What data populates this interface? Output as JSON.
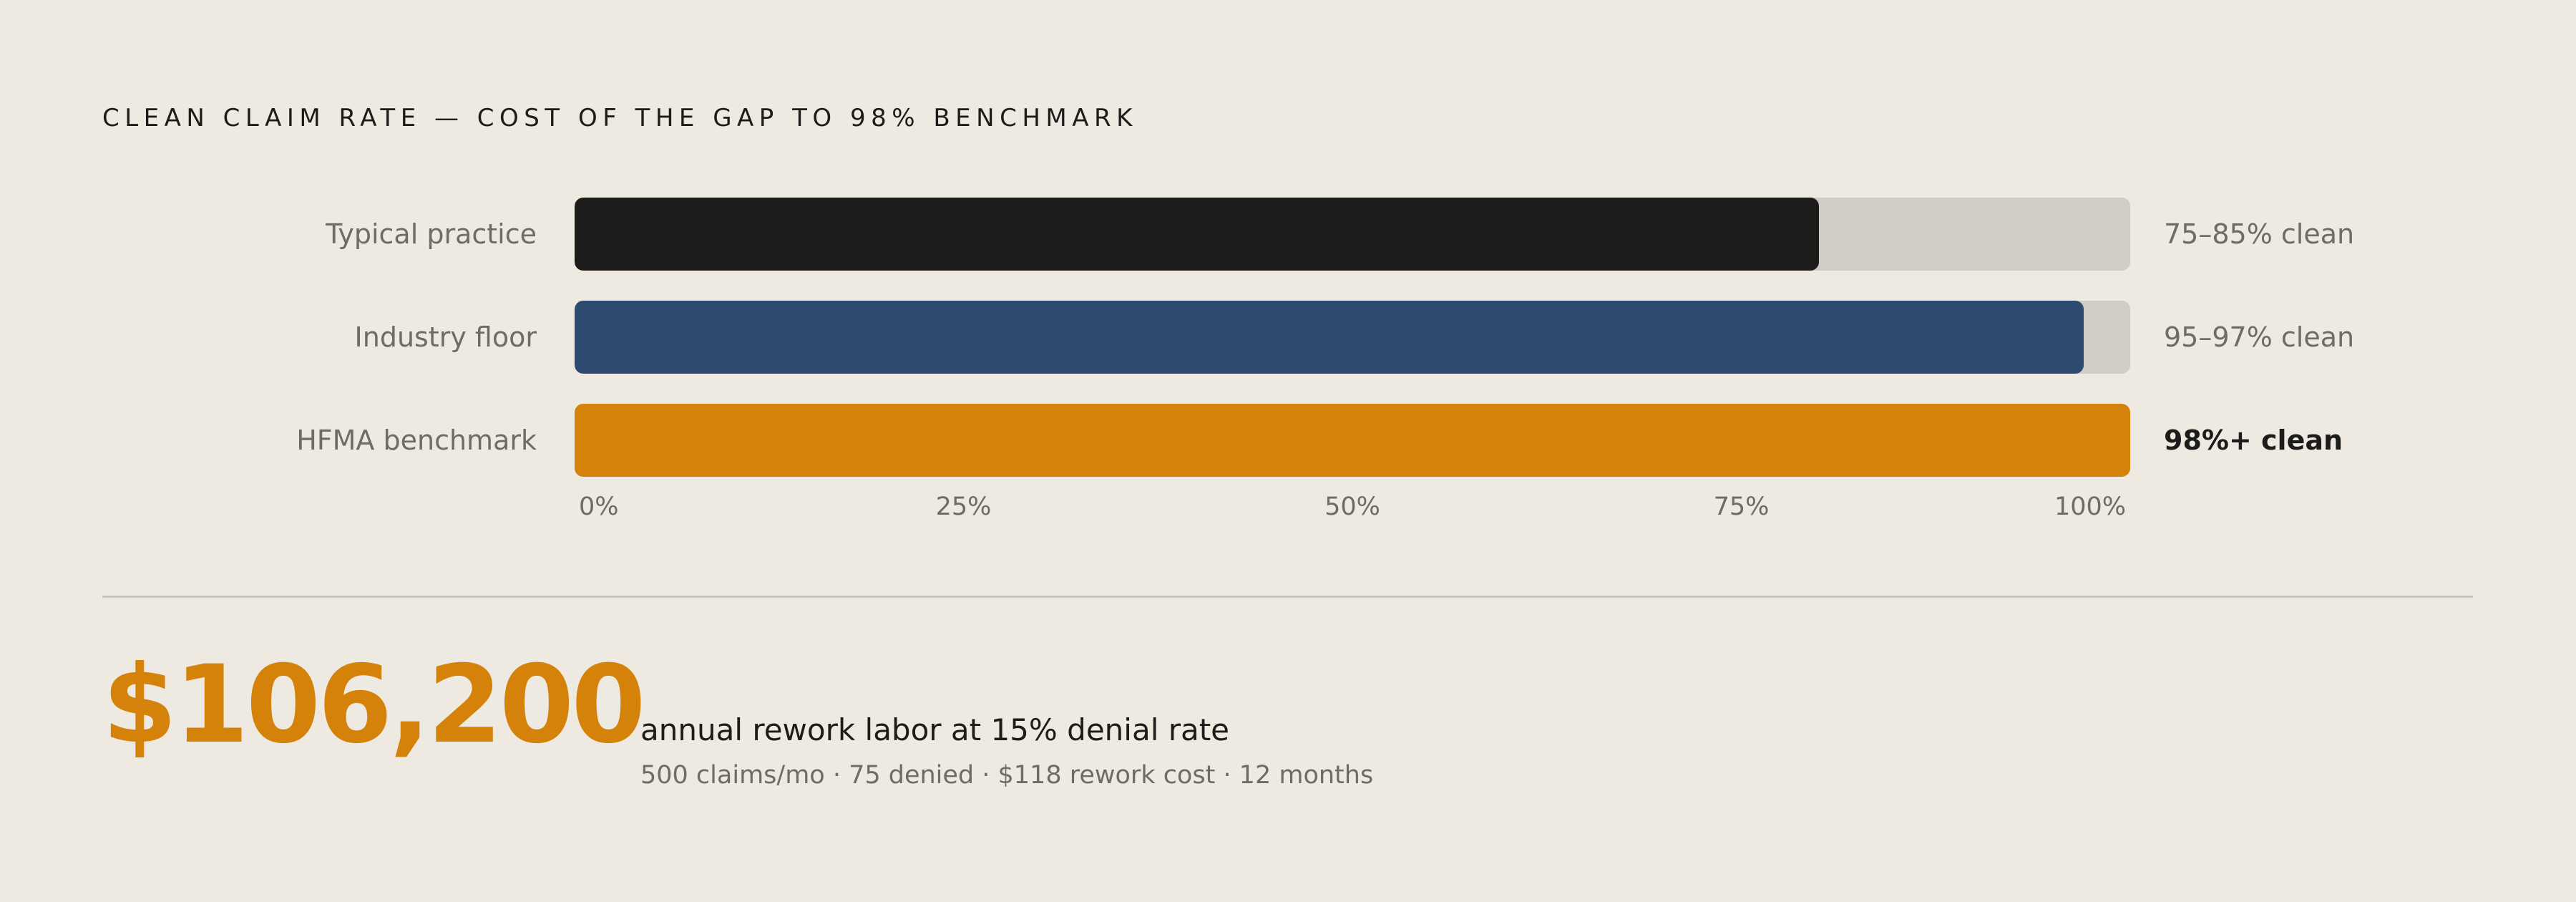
{
  "chart_data": {
    "type": "bar",
    "orientation": "horizontal",
    "title": "CLEAN CLAIM RATE — COST OF THE GAP TO 98% BENCHMARK",
    "categories": [
      "Typical practice",
      "Industry floor",
      "HFMA benchmark"
    ],
    "values": [
      80,
      97,
      100
    ],
    "value_labels": [
      "75–85% clean",
      "95–97% clean",
      "98%+ clean"
    ],
    "colors": [
      "#1C1C1B",
      "#2E4A6E",
      "#D4820A"
    ],
    "track_color": "#D1CDC4",
    "xlim": [
      0,
      100
    ],
    "x_ticks": [
      "0%",
      "25%",
      "50%",
      "75%",
      "100%"
    ],
    "highlight_index": 2
  },
  "summary": {
    "amount": "$106,200",
    "headline": "annual rework labor at 15% denial rate",
    "details": "500 claims/mo · 75 denied · $118 rework cost · 12 months",
    "accent": "#D4820A"
  }
}
